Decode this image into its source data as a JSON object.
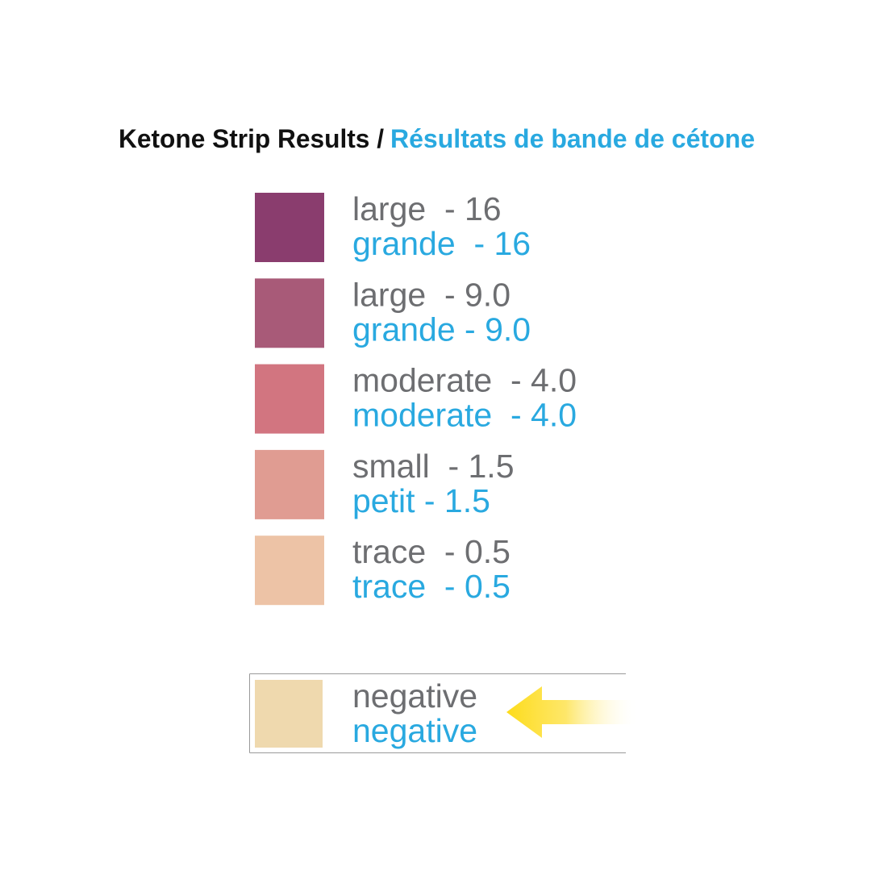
{
  "title": {
    "english": "Ketone Strip Results /",
    "french": "Résultats de bande de cétone"
  },
  "items": [
    {
      "color": "#8a3d6e",
      "english": "large  - 16",
      "french": "grande  - 16"
    },
    {
      "color": "#a85a78",
      "english": "large  - 9.0",
      "french": "grande - 9.0"
    },
    {
      "color": "#d27580",
      "english": "moderate  - 4.0",
      "french": "moderate  - 4.0"
    },
    {
      "color": "#e09c92",
      "english": "small  - 1.5",
      "french": "petit - 1.5"
    },
    {
      "color": "#edc3a6",
      "english": "trace  - 0.5",
      "french": "trace  - 0.5"
    }
  ],
  "negative": {
    "color": "#efd9ae",
    "english": "negative",
    "french": "negative"
  }
}
